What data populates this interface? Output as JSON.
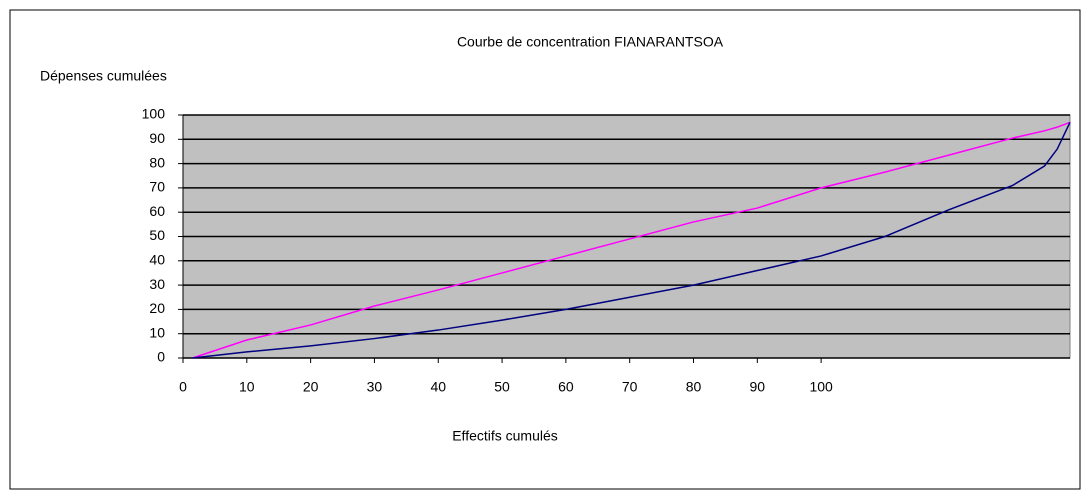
{
  "chart_data": {
    "type": "line",
    "title": "Courbe de concentration FIANARANTSOA",
    "ylabel": "Dépenses cumulées",
    "xlabel": "Effectifs cumulés",
    "xlim": [
      0,
      139
    ],
    "xticks": [
      0,
      10,
      20,
      30,
      40,
      50,
      60,
      70,
      80,
      90,
      100
    ],
    "ylim": [
      0,
      100
    ],
    "yticks": [
      0,
      10,
      20,
      30,
      40,
      50,
      60,
      70,
      80,
      90,
      100
    ],
    "grid": true,
    "background": "#c0c0c0",
    "x": [
      1.5,
      10,
      20,
      30,
      40,
      50,
      60,
      70,
      80,
      90,
      100,
      110,
      120,
      130,
      135,
      137,
      139
    ],
    "series": [
      {
        "color": "#ff00ff",
        "values": [
          0,
          7.4,
          13.6,
          21.4,
          28,
          35,
          42,
          49,
          56,
          61.7,
          70,
          76.5,
          83.5,
          90.5,
          93.5,
          95,
          97
        ]
      },
      {
        "color": "#000080",
        "values": [
          0,
          2.5,
          5,
          8,
          11.5,
          15.6,
          20,
          25,
          30,
          36,
          42,
          50,
          61,
          71,
          79,
          86,
          97
        ]
      }
    ]
  }
}
